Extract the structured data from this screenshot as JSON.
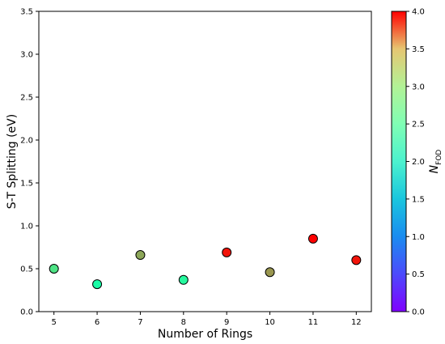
{
  "chart_data": {
    "type": "scatter",
    "title": "",
    "xlabel": "Number of Rings",
    "ylabel": "S-T Splitting (eV)",
    "xlim": [
      4.65,
      12.35
    ],
    "ylim": [
      0.0,
      3.5
    ],
    "xticks": [
      5,
      6,
      7,
      8,
      9,
      10,
      11,
      12
    ],
    "xtick_labels": [
      "5",
      "6",
      "7",
      "8",
      "9",
      "10",
      "11",
      "12"
    ],
    "yticks": [
      0.0,
      0.5,
      1.0,
      1.5,
      2.0,
      2.5,
      3.0,
      3.5
    ],
    "ytick_labels": [
      "0.0",
      "0.5",
      "1.0",
      "1.5",
      "2.0",
      "2.5",
      "3.0",
      "3.5"
    ],
    "grid": false,
    "x": [
      5,
      6,
      7,
      8,
      9,
      10,
      11,
      12
    ],
    "y": [
      0.5,
      0.32,
      0.66,
      0.37,
      0.69,
      0.46,
      0.85,
      0.6
    ],
    "color_values": [
      2.6,
      2.2,
      3.1,
      2.3,
      3.9,
      3.2,
      4.0,
      3.9
    ],
    "colorbar": {
      "label_main": "N",
      "label_sub": "FOD",
      "colormap": "rainbow",
      "range": [
        0.0,
        4.0
      ],
      "ticks": [
        0.0,
        0.5,
        1.0,
        1.5,
        2.0,
        2.5,
        3.0,
        3.5,
        4.0
      ],
      "tick_labels": [
        "0.0",
        "0.5",
        "1.0",
        "1.5",
        "2.0",
        "2.5",
        "3.0",
        "3.5",
        "4.0"
      ]
    }
  }
}
